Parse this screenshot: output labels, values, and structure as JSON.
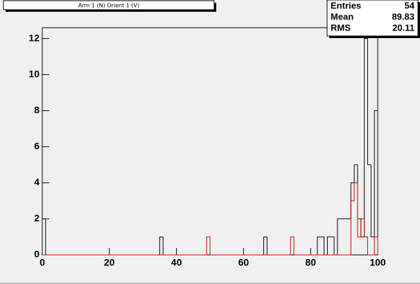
{
  "chart_data": {
    "type": "histogram",
    "title": "Arm 1 (N) Orient 1 (V)",
    "bins": [
      0,
      1,
      2,
      3,
      4,
      5,
      6,
      7,
      8,
      9,
      10,
      11,
      12,
      13,
      14,
      15,
      16,
      17,
      18,
      19,
      20,
      21,
      22,
      23,
      24,
      25,
      26,
      27,
      28,
      29,
      30,
      31,
      32,
      33,
      34,
      35,
      36,
      37,
      38,
      39,
      40,
      41,
      42,
      43,
      44,
      45,
      46,
      47,
      48,
      49,
      50,
      51,
      52,
      53,
      54,
      55,
      56,
      57,
      58,
      59,
      60,
      61,
      62,
      63,
      64,
      65,
      66,
      67,
      68,
      69,
      70,
      71,
      72,
      73,
      74,
      75,
      76,
      77,
      78,
      79,
      80,
      81,
      82,
      83,
      84,
      85,
      86,
      87,
      88,
      89,
      90,
      91,
      92,
      93,
      94,
      95,
      96,
      97,
      98,
      99,
      100
    ],
    "series": [
      {
        "color": "#000000",
        "values": [
          2,
          0,
          0,
          0,
          0,
          0,
          0,
          0,
          0,
          0,
          0,
          0,
          0,
          0,
          0,
          0,
          0,
          0,
          0,
          0,
          0,
          0,
          0,
          0,
          0,
          0,
          0,
          0,
          0,
          0,
          0,
          0,
          0,
          0,
          0,
          1,
          0,
          0,
          0,
          0,
          0,
          0,
          0,
          0,
          0,
          0,
          0,
          0,
          0,
          0,
          0,
          0,
          0,
          0,
          0,
          0,
          0,
          0,
          0,
          0,
          0,
          0,
          0,
          0,
          0,
          0,
          1,
          0,
          0,
          0,
          0,
          0,
          0,
          0,
          0,
          0,
          0,
          0,
          0,
          0,
          0,
          0,
          1,
          1,
          0,
          1,
          1,
          0,
          2,
          2,
          2,
          2,
          4,
          5,
          2,
          1,
          12,
          5,
          1,
          8
        ]
      },
      {
        "color": "#d00000",
        "values": [
          0,
          0,
          0,
          0,
          0,
          0,
          0,
          0,
          0,
          0,
          0,
          0,
          0,
          0,
          0,
          0,
          0,
          0,
          0,
          0,
          0,
          0,
          0,
          0,
          0,
          0,
          0,
          0,
          0,
          0,
          0,
          0,
          0,
          0,
          0,
          0,
          0,
          0,
          0,
          0,
          0,
          0,
          0,
          0,
          0,
          0,
          0,
          0,
          0,
          1,
          0,
          0,
          0,
          0,
          0,
          0,
          0,
          0,
          0,
          0,
          0,
          0,
          0,
          0,
          0,
          0,
          0,
          0,
          0,
          0,
          0,
          0,
          0,
          0,
          1,
          0,
          0,
          0,
          0,
          0,
          0,
          0,
          0,
          0,
          0,
          0,
          0,
          0,
          0,
          0,
          0,
          0,
          3,
          4,
          1,
          2,
          1,
          0,
          0,
          1
        ]
      }
    ],
    "xlim": [
      0,
      100
    ],
    "xticks": [
      0,
      20,
      40,
      60,
      80,
      100
    ],
    "ylim": [
      0,
      12.6
    ],
    "yticks": [
      0,
      2,
      4,
      6,
      8,
      10,
      12
    ],
    "stats": {
      "rows": [
        [
          "Entries",
          "54"
        ],
        [
          "Mean",
          "89.83"
        ],
        [
          "RMS",
          "20.11"
        ]
      ]
    }
  }
}
